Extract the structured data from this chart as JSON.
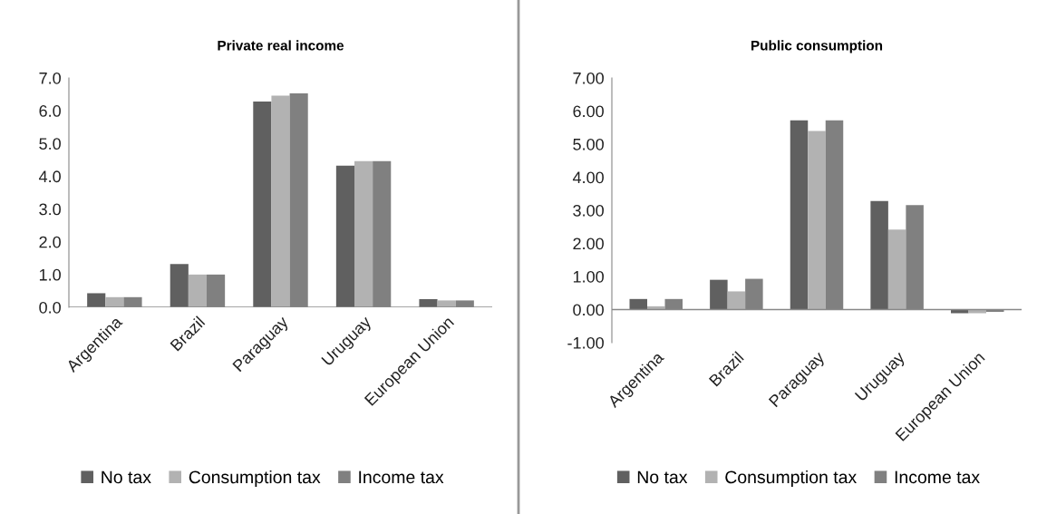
{
  "chart_data": [
    {
      "type": "bar",
      "title": "Private real income",
      "categories": [
        "Argentina",
        "Brazil",
        "Paraguay",
        "Uruguay",
        "European Union"
      ],
      "series": [
        {
          "name": "No tax",
          "color": "#606060",
          "values": [
            0.43,
            1.32,
            6.28,
            4.32,
            0.25
          ]
        },
        {
          "name": "Consumption tax",
          "color": "#b2b2b2",
          "values": [
            0.31,
            1.0,
            6.46,
            4.46,
            0.21
          ]
        },
        {
          "name": "Income tax",
          "color": "#808080",
          "values": [
            0.31,
            1.0,
            6.53,
            4.46,
            0.21
          ]
        }
      ],
      "ylim": [
        0,
        7
      ],
      "yticks": [
        {
          "value": 0,
          "label": "0.0"
        },
        {
          "value": 1,
          "label": "1.0"
        },
        {
          "value": 2,
          "label": "2.0"
        },
        {
          "value": 3,
          "label": "3.0"
        },
        {
          "value": 4,
          "label": "4.0"
        },
        {
          "value": 5,
          "label": "5.0"
        },
        {
          "value": 6,
          "label": "6.0"
        },
        {
          "value": 7,
          "label": "7.0"
        }
      ],
      "grid": false,
      "legend": "bottom"
    },
    {
      "type": "bar",
      "title": "Public consumption",
      "categories": [
        "Argentina",
        "Brazil",
        "Paraguay",
        "Uruguay",
        "European Union"
      ],
      "series": [
        {
          "name": "No tax",
          "color": "#606060",
          "values": [
            0.32,
            0.9,
            5.72,
            3.28,
            -0.11
          ]
        },
        {
          "name": "Consumption tax",
          "color": "#b2b2b2",
          "values": [
            0.1,
            0.55,
            5.4,
            2.42,
            -0.11
          ]
        },
        {
          "name": "Income tax",
          "color": "#808080",
          "values": [
            0.32,
            0.93,
            5.72,
            3.16,
            -0.07
          ]
        }
      ],
      "ylim": [
        -1,
        7
      ],
      "yticks": [
        {
          "value": -1,
          "label": "-1.00"
        },
        {
          "value": 0,
          "label": "0.00"
        },
        {
          "value": 1,
          "label": "1.00"
        },
        {
          "value": 2,
          "label": "2.00"
        },
        {
          "value": 3,
          "label": "3.00"
        },
        {
          "value": 4,
          "label": "4.00"
        },
        {
          "value": 5,
          "label": "5.00"
        },
        {
          "value": 6,
          "label": "6.00"
        },
        {
          "value": 7,
          "label": "7.00"
        }
      ],
      "grid": false,
      "legend": "bottom"
    }
  ]
}
